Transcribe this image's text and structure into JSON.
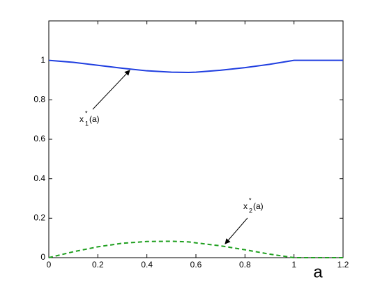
{
  "chart_data": {
    "type": "line",
    "x": [
      0,
      0.1,
      0.2,
      0.3,
      0.4,
      0.5,
      0.57,
      0.6,
      0.7,
      0.8,
      0.9,
      1.0,
      1.1,
      1.2
    ],
    "series": [
      {
        "color": "#1f3ee0",
        "style": "solid",
        "values": [
          1.0,
          0.99,
          0.975,
          0.96,
          0.947,
          0.94,
          0.939,
          0.94,
          0.95,
          0.963,
          0.98,
          1.0,
          1.0,
          1.0
        ]
      },
      {
        "color": "#1f9f1f",
        "style": "dashed",
        "values": [
          0,
          0.03,
          0.055,
          0.073,
          0.082,
          0.083,
          0.08,
          0.075,
          0.06,
          0.04,
          0.018,
          0,
          0,
          0
        ]
      }
    ],
    "xlim": [
      0,
      1.2
    ],
    "xticks": [
      0,
      0.2,
      0.4,
      0.6,
      0.8,
      1,
      1.2
    ],
    "ylim": [
      0,
      1.2
    ],
    "yticks": [
      0,
      0.2,
      0.4,
      0.6,
      0.8,
      1
    ],
    "xlabel": "a",
    "annotations": [
      {
        "base": "x",
        "sup": "*",
        "sub": "1",
        "rest": "(a)"
      },
      {
        "base": "x",
        "sup": "*",
        "sub": "2",
        "rest": "(a)"
      }
    ]
  }
}
